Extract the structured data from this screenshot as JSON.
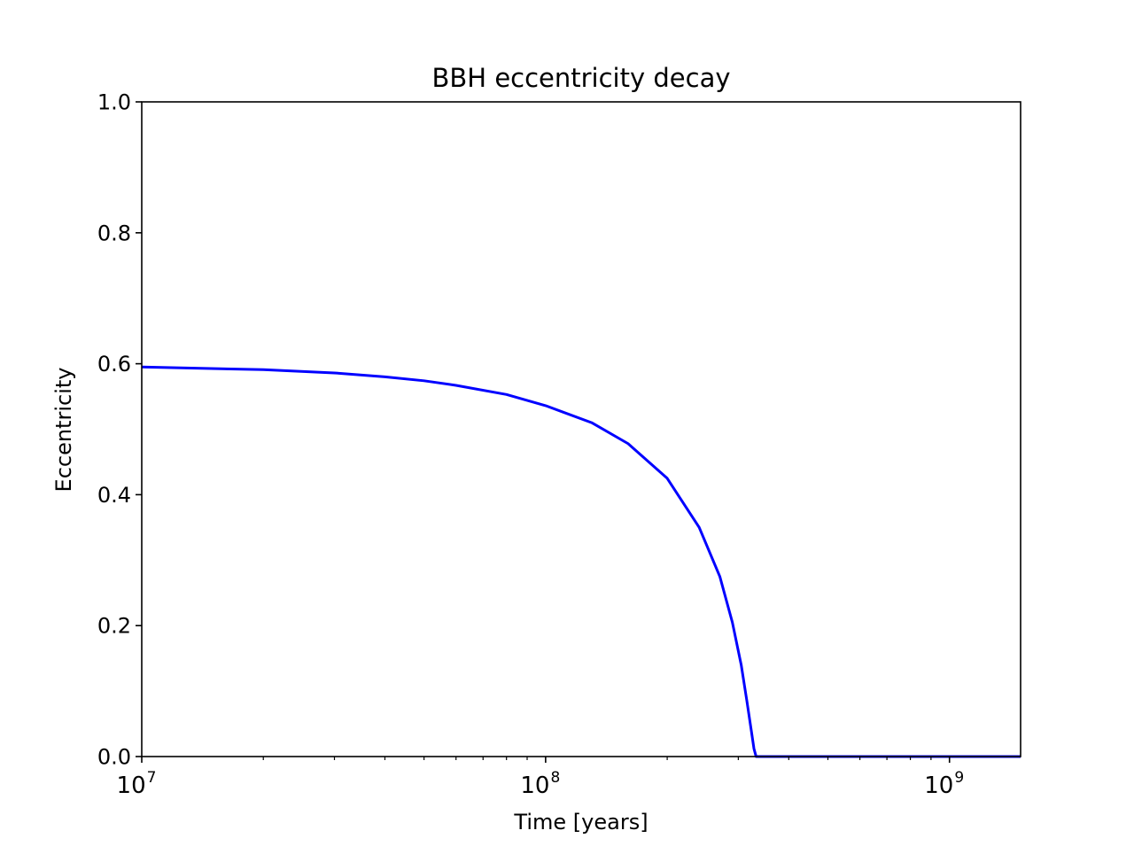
{
  "chart_data": {
    "type": "line",
    "title": "BBH eccentricity decay",
    "xlabel": "Time [years]",
    "ylabel": "Eccentricity",
    "xscale": "log",
    "xlim": [
      10000000,
      1500000000
    ],
    "ylim": [
      0.0,
      1.0
    ],
    "x_ticks": [
      {
        "base": "10",
        "exp": "7",
        "value": 10000000
      },
      {
        "base": "10",
        "exp": "8",
        "value": 100000000
      },
      {
        "base": "10",
        "exp": "9",
        "value": 1000000000
      }
    ],
    "y_ticks": [
      {
        "label": "0.0",
        "value": 0.0
      },
      {
        "label": "0.2",
        "value": 0.2
      },
      {
        "label": "0.4",
        "value": 0.4
      },
      {
        "label": "0.6",
        "value": 0.6
      },
      {
        "label": "0.8",
        "value": 0.8
      },
      {
        "label": "1.0",
        "value": 1.0
      }
    ],
    "grid": false,
    "legend": "none",
    "series": [
      {
        "color": "#0000ff",
        "x": [
          10000000,
          20000000,
          30000000,
          40000000,
          50000000,
          60000000,
          80000000,
          100000000,
          130000000,
          160000000,
          200000000,
          240000000,
          270000000,
          290000000,
          305000000,
          315000000,
          323000000,
          328000000,
          332000000,
          1500000000
        ],
        "y": [
          0.595,
          0.591,
          0.586,
          0.58,
          0.574,
          0.567,
          0.553,
          0.536,
          0.51,
          0.478,
          0.425,
          0.35,
          0.275,
          0.205,
          0.14,
          0.085,
          0.04,
          0.012,
          0.0,
          0.0
        ]
      }
    ]
  }
}
